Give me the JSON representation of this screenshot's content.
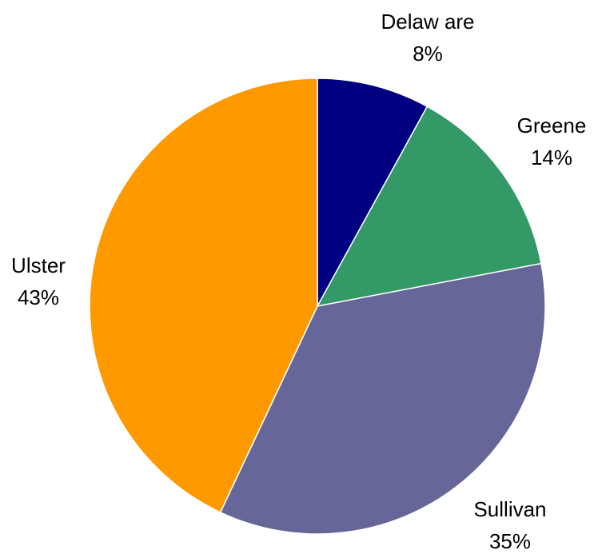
{
  "chart_data": {
    "type": "pie",
    "title": "",
    "slices": [
      {
        "label": "Delaw are",
        "percent_label": "8%",
        "value": 8,
        "color": "#000080"
      },
      {
        "label": "Greene",
        "percent_label": "14%",
        "value": 14,
        "color": "#339966"
      },
      {
        "label": "Sullivan",
        "percent_label": "35%",
        "value": 35,
        "color": "#666699"
      },
      {
        "label": "Ulster",
        "percent_label": "43%",
        "value": 43,
        "color": "#FF9900"
      }
    ],
    "start_angle_deg": 0,
    "direction": "clockwise",
    "legend": "none",
    "data_labels": "outside"
  }
}
